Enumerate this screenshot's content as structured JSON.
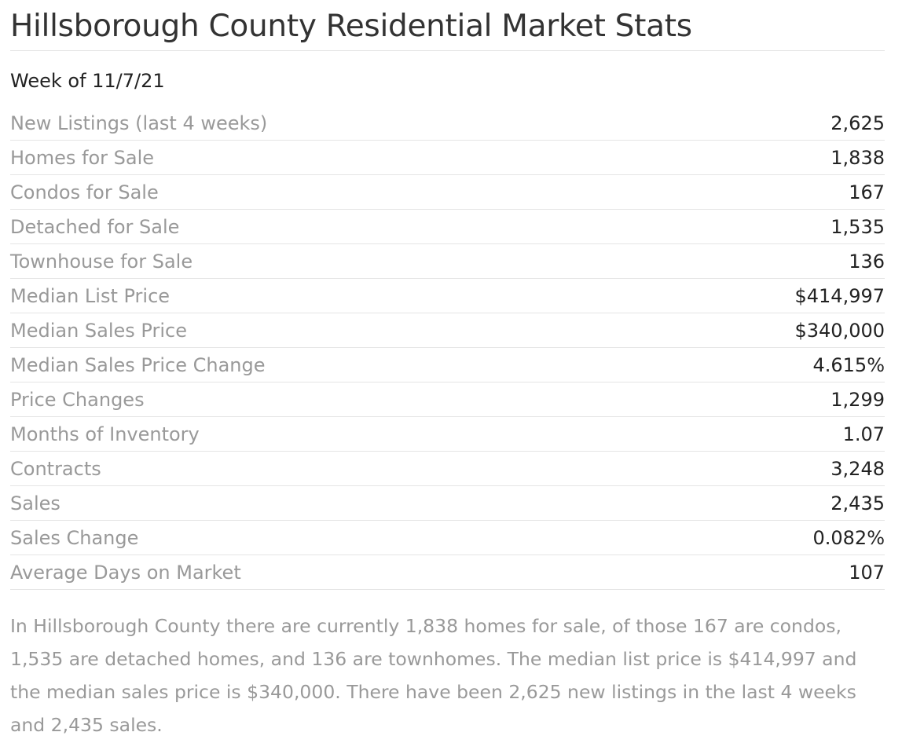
{
  "title": "Hillsborough County Residential Market Stats",
  "week": "Week of 11/7/21",
  "stats": [
    {
      "label": "New Listings (last 4 weeks)",
      "value": "2,625"
    },
    {
      "label": "Homes for Sale",
      "value": "1,838"
    },
    {
      "label": "Condos for Sale",
      "value": "167"
    },
    {
      "label": "Detached for Sale",
      "value": "1,535"
    },
    {
      "label": "Townhouse for Sale",
      "value": "136"
    },
    {
      "label": "Median List Price",
      "value": "$414,997"
    },
    {
      "label": "Median Sales Price",
      "value": "$340,000"
    },
    {
      "label": "Median Sales Price Change",
      "value": "4.615%"
    },
    {
      "label": "Price Changes",
      "value": "1,299"
    },
    {
      "label": "Months of Inventory",
      "value": "1.07"
    },
    {
      "label": "Contracts",
      "value": "3,248"
    },
    {
      "label": "Sales",
      "value": "2,435"
    },
    {
      "label": "Sales Change",
      "value": "0.082%"
    },
    {
      "label": "Average Days on Market",
      "value": "107"
    }
  ],
  "summary": "In Hillsborough County there are currently 1,838 homes for sale, of those 167 are condos, 1,535 are detached homes, and 136 are townhomes. The median list price is $414,997 and the median sales price is $340,000. There have been 2,625 new listings in the last 4 weeks and 2,435 sales."
}
